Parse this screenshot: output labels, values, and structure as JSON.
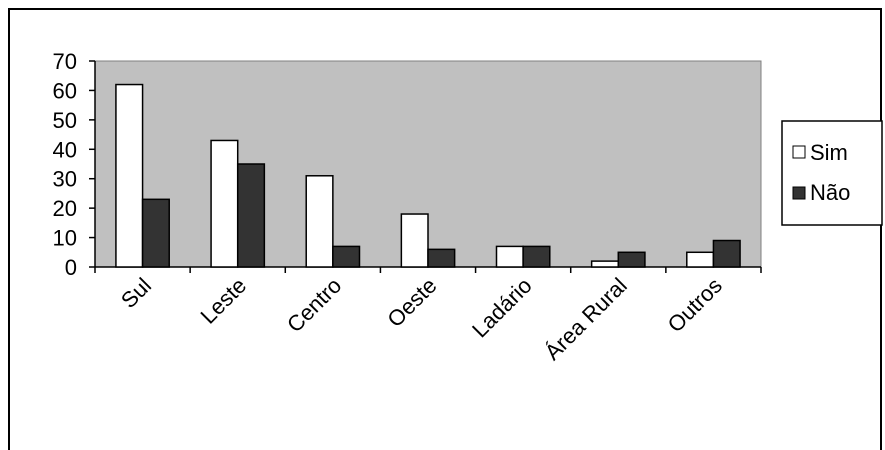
{
  "chart_data": {
    "type": "bar",
    "title": "",
    "xlabel": "",
    "ylabel": "",
    "categories": [
      "Sul",
      "Leste",
      "Centro",
      "Oeste",
      "Ladário",
      "Área Rural",
      "Outros"
    ],
    "series": [
      {
        "name": "Sim",
        "values": [
          62,
          43,
          31,
          18,
          7,
          2,
          5
        ],
        "color": "#ffffff"
      },
      {
        "name": "Não",
        "values": [
          23,
          35,
          7,
          6,
          7,
          5,
          9
        ],
        "color": "#333333"
      }
    ],
    "ylim": [
      0,
      70
    ],
    "yticks": [
      "0",
      "10",
      "20",
      "30",
      "40",
      "50",
      "60",
      "70"
    ],
    "plot_background": "#c0c0c0",
    "grid": false,
    "legend_position": "right"
  }
}
